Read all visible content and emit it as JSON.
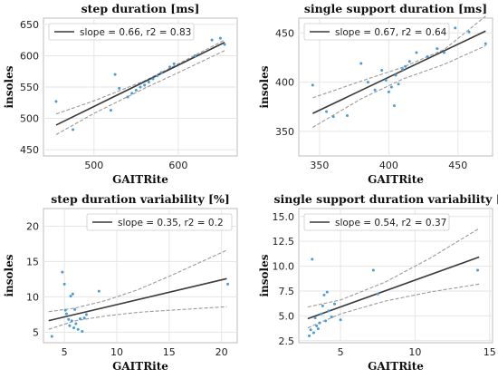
{
  "colors": {
    "fit": "#3a3a3a",
    "ci": "#9a9a9a",
    "points": "#4a9bd6",
    "grid": "#e6e6e6",
    "frame": "#bdbdbd"
  },
  "chart_data": [
    {
      "type": "scatter",
      "title": "step duration [ms]",
      "xlabel": "GAITRite",
      "ylabel": "insoles",
      "xlim": [
        440,
        670
      ],
      "ylim": [
        440,
        660
      ],
      "xticks": [
        500,
        600
      ],
      "yticks": [
        450,
        500,
        550,
        600,
        650
      ],
      "grid": true,
      "legend": {
        "placement": "top-left",
        "entries": [
          "slope = 0.66,  r2 = 0.83"
        ]
      },
      "fit": {
        "slope": 0.66,
        "intercept": 189,
        "x_range": [
          455,
          655
        ]
      },
      "ci_upper": [
        [
          455,
          507
        ],
        [
          500,
          528
        ],
        [
          560,
          560
        ],
        [
          600,
          587
        ],
        [
          655,
          625
        ]
      ],
      "ci_lower": [
        [
          455,
          474
        ],
        [
          500,
          508
        ],
        [
          560,
          548
        ],
        [
          600,
          573
        ],
        [
          655,
          608
        ]
      ],
      "points": [
        [
          455,
          527
        ],
        [
          475,
          482
        ],
        [
          520,
          513
        ],
        [
          525,
          570
        ],
        [
          530,
          548
        ],
        [
          540,
          534
        ],
        [
          545,
          540
        ],
        [
          550,
          545
        ],
        [
          555,
          550
        ],
        [
          560,
          553
        ],
        [
          565,
          558
        ],
        [
          570,
          563
        ],
        [
          575,
          568
        ],
        [
          580,
          573
        ],
        [
          590,
          582
        ],
        [
          595,
          587
        ],
        [
          620,
          600
        ],
        [
          640,
          625
        ],
        [
          650,
          628
        ],
        [
          655,
          618
        ]
      ]
    },
    {
      "type": "scatter",
      "title": "single support duration [ms]",
      "xlabel": "GAITRite",
      "ylabel": "insoles",
      "xlim": [
        335,
        475
      ],
      "ylim": [
        325,
        465
      ],
      "xticks": [
        350,
        400,
        450
      ],
      "yticks": [
        350,
        400,
        450
      ],
      "grid": true,
      "legend": {
        "placement": "top-left",
        "entries": [
          "slope = 0.67,  r2 = 0.64"
        ]
      },
      "fit": {
        "slope": 0.67,
        "intercept": 137,
        "x_range": [
          345,
          470
        ]
      },
      "ci_upper": [
        [
          345,
          384
        ],
        [
          380,
          401
        ],
        [
          410,
          415
        ],
        [
          440,
          433
        ],
        [
          470,
          467
        ]
      ],
      "ci_lower": [
        [
          345,
          354
        ],
        [
          380,
          383
        ],
        [
          410,
          403
        ],
        [
          440,
          418
        ],
        [
          470,
          437
        ]
      ],
      "points": [
        [
          345,
          397
        ],
        [
          355,
          370
        ],
        [
          360,
          365
        ],
        [
          370,
          366
        ],
        [
          380,
          419
        ],
        [
          385,
          400
        ],
        [
          390,
          392
        ],
        [
          395,
          412
        ],
        [
          398,
          402
        ],
        [
          400,
          390
        ],
        [
          402,
          395
        ],
        [
          404,
          376
        ],
        [
          405,
          407
        ],
        [
          407,
          398
        ],
        [
          410,
          413
        ],
        [
          412,
          416
        ],
        [
          415,
          421
        ],
        [
          420,
          430
        ],
        [
          422,
          444
        ],
        [
          428,
          426
        ],
        [
          435,
          434
        ],
        [
          440,
          430
        ],
        [
          448,
          455
        ],
        [
          458,
          451
        ],
        [
          470,
          439
        ]
      ]
    },
    {
      "type": "scatter",
      "title": "step duration variability [%]",
      "xlabel": "GAITRite",
      "ylabel": "insoles",
      "xlim": [
        3,
        21.5
      ],
      "ylim": [
        3.5,
        22.5
      ],
      "xticks": [
        5,
        10,
        15,
        20
      ],
      "yticks": [
        5,
        10,
        15,
        20
      ],
      "grid": true,
      "legend": {
        "placement": "top-right",
        "entries": [
          "slope = 0.35,  r2 = 0.2"
        ]
      },
      "fit": {
        "slope": 0.35,
        "intercept": 5.4,
        "x_range": [
          3.5,
          20.5
        ]
      },
      "ci_upper": [
        [
          3.5,
          7.9
        ],
        [
          6,
          8.4
        ],
        [
          9,
          9.5
        ],
        [
          12,
          11.0
        ],
        [
          15,
          12.9
        ],
        [
          20.5,
          16.6
        ]
      ],
      "ci_lower": [
        [
          3.5,
          5.4
        ],
        [
          6,
          6.6
        ],
        [
          9,
          7.3
        ],
        [
          12,
          7.8
        ],
        [
          15,
          8.1
        ],
        [
          20.5,
          8.6
        ]
      ],
      "points": [
        [
          3.8,
          4.4
        ],
        [
          4.8,
          13.5
        ],
        [
          5.0,
          11.8
        ],
        [
          5.1,
          8.1
        ],
        [
          5.2,
          7.6
        ],
        [
          5.4,
          6.8
        ],
        [
          5.5,
          5.9
        ],
        [
          5.6,
          10.1
        ],
        [
          5.7,
          6.6
        ],
        [
          5.8,
          10.4
        ],
        [
          5.9,
          5.6
        ],
        [
          6.0,
          8.2
        ],
        [
          6.1,
          6.2
        ],
        [
          6.3,
          5.4
        ],
        [
          6.5,
          6.9
        ],
        [
          6.7,
          5.1
        ],
        [
          6.9,
          7.0
        ],
        [
          7.1,
          7.5
        ],
        [
          8.3,
          10.8
        ],
        [
          20.6,
          11.8
        ]
      ]
    },
    {
      "type": "scatter",
      "title": "single support duration variability [%]",
      "xlabel": "GAITRite",
      "ylabel": "insoles",
      "xlim": [
        2.2,
        15.2
      ],
      "ylim": [
        2.3,
        15.8
      ],
      "xticks": [
        5,
        10,
        15
      ],
      "yticks": [
        2.5,
        5.0,
        7.5,
        10.0,
        12.5,
        15.0
      ],
      "grid": true,
      "legend": {
        "placement": "top-left",
        "entries": [
          "slope = 0.54,  r2 = 0.37"
        ]
      },
      "fit": {
        "slope": 0.54,
        "intercept": 3.2,
        "x_range": [
          2.8,
          14.3
        ]
      },
      "ci_upper": [
        [
          2.8,
          5.9
        ],
        [
          5,
          6.6
        ],
        [
          8,
          8.4
        ],
        [
          11,
          10.8
        ],
        [
          14.3,
          13.8
        ]
      ],
      "ci_lower": [
        [
          2.8,
          3.8
        ],
        [
          5,
          5.2
        ],
        [
          8,
          6.5
        ],
        [
          11,
          7.4
        ],
        [
          14.3,
          8.2
        ]
      ],
      "points": [
        [
          2.9,
          3.0
        ],
        [
          3.0,
          3.6
        ],
        [
          3.1,
          10.7
        ],
        [
          3.2,
          3.3
        ],
        [
          3.3,
          4.8
        ],
        [
          3.4,
          4.0
        ],
        [
          3.5,
          3.7
        ],
        [
          3.6,
          4.3
        ],
        [
          3.7,
          5.2
        ],
        [
          3.8,
          6.0
        ],
        [
          3.9,
          7.1
        ],
        [
          4.0,
          4.5
        ],
        [
          4.1,
          7.4
        ],
        [
          4.2,
          5.5
        ],
        [
          4.4,
          4.9
        ],
        [
          4.6,
          6.2
        ],
        [
          5.0,
          4.6
        ],
        [
          7.2,
          9.6
        ],
        [
          7.5,
          7.2
        ],
        [
          14.2,
          9.6
        ]
      ]
    }
  ]
}
